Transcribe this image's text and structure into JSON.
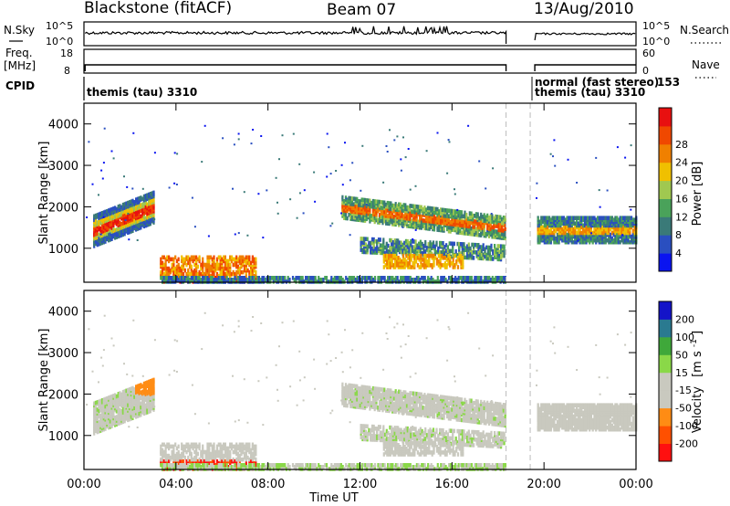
{
  "header": {
    "radar": "Blackstone (fitACF)",
    "beam": "Beam 07",
    "date": "13/Aug/2010"
  },
  "strip_labels": {
    "nsky": "N.Sky",
    "nsky_scale_top": "10^5",
    "nsky_scale_bottom": "10^0",
    "nsearch": "N.Search",
    "nsearch_scale_top": "10^5",
    "nsearch_scale_bottom": "10^0",
    "freq": "Freq.",
    "freq_unit": "[MHz]",
    "freq_top": "18",
    "freq_bottom": "8",
    "nave": "Nave",
    "nave_top": "60",
    "nave_bottom": "0",
    "cpid": "CPID",
    "cpid_seg1": "themis (tau) 3310",
    "cpid_seg2_line1": "normal (fast stereo)",
    "cpid_seg2_line2": "themis (tau) 3310",
    "cpid_seg2_num": "153"
  },
  "colors": {
    "power_scale": [
      "#0a14f0",
      "#2a4fc0",
      "#3a7a78",
      "#4aa25a",
      "#a0c850",
      "#f0c000",
      "#f08000",
      "#f04800",
      "#e81010"
    ],
    "velocity_scale": [
      "#ff1010",
      "#ff5000",
      "#ff8c14",
      "#c9c9bf",
      "#c9c9bf",
      "#8ad848",
      "#3fa83a",
      "#2a7a90",
      "#1414c8"
    ]
  },
  "chart_data": [
    {
      "type": "heatmap",
      "name_hint": "power",
      "xlabel": "",
      "ylabel": "Slant Range [km]",
      "x_ticks": [
        "00:00",
        "04:00",
        "08:00",
        "12:00",
        "16:00",
        "20:00",
        "00:00"
      ],
      "y_ticks": [
        "1000",
        "2000",
        "3000",
        "4000"
      ],
      "xlim_hours": [
        0,
        24
      ],
      "ylim_km": [
        180,
        4500
      ],
      "colorbar_label": "Power [dB]",
      "colorbar_ticks": [
        "4",
        "8",
        "12",
        "16",
        "20",
        "24",
        "28"
      ],
      "colorbar_range": [
        0,
        30
      ],
      "data_gap_hours": [
        18.35,
        19.6
      ],
      "echo_regions": [
        {
          "t0": 0.4,
          "t1": 3.0,
          "r0": 1100,
          "r1": 2500,
          "level": "high"
        },
        {
          "t0": 3.3,
          "t1": 7.5,
          "r0": 200,
          "r1": 900,
          "level": "mixed"
        },
        {
          "t0": 11.2,
          "t1": 18.3,
          "r0": 700,
          "r1": 2400,
          "level": "mid"
        },
        {
          "t0": 19.7,
          "t1": 24.0,
          "r0": 900,
          "r1": 2000,
          "level": "mid"
        }
      ]
    },
    {
      "type": "heatmap",
      "name_hint": "velocity",
      "xlabel": "Time UT",
      "ylabel": "Slant Range [km]",
      "x_ticks": [
        "00:00",
        "04:00",
        "08:00",
        "12:00",
        "16:00",
        "20:00",
        "00:00"
      ],
      "y_ticks": [
        "1000",
        "2000",
        "3000",
        "4000"
      ],
      "xlim_hours": [
        0,
        24
      ],
      "ylim_km": [
        180,
        4500
      ],
      "colorbar_label": "Velocity [m s-1]",
      "colorbar_ticks": [
        "-200",
        "-100",
        "-50",
        "-15",
        "15",
        "50",
        "100",
        "200"
      ],
      "colorbar_range": [
        -250,
        250
      ]
    }
  ],
  "axis_titles": {
    "slant_range": "Slant Range [km]",
    "time": "Time UT",
    "power": "Power [dB]",
    "velocity": "Velocity",
    "velocity_unit": "[m s",
    "velocity_exp": "-1",
    "velocity_close": "]"
  }
}
